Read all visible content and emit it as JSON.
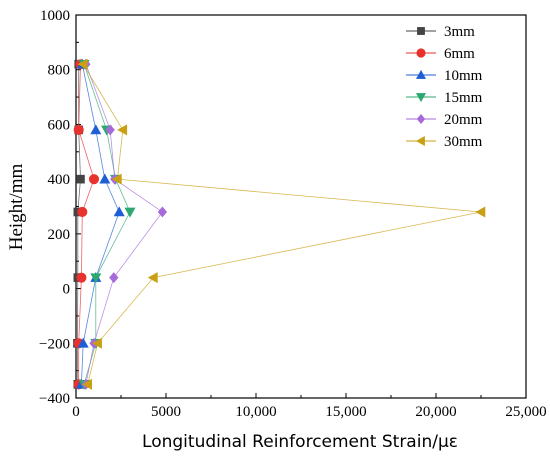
{
  "chart_data": {
    "type": "line",
    "title": "",
    "xlabel": "Longitudinal Reinforcement Strain/με",
    "ylabel": "Height/mm",
    "xlim": [
      0,
      25000
    ],
    "ylim": [
      -400,
      1000
    ],
    "x_ticks": [
      0,
      5000,
      10000,
      15000,
      20000,
      25000
    ],
    "x_tick_labels": [
      "0",
      "5000",
      "10,000",
      "15,000",
      "20,000",
      "25,000"
    ],
    "y_ticks": [
      -400,
      -200,
      0,
      200,
      400,
      600,
      800,
      1000
    ],
    "y_tick_labels": [
      "−400",
      "−200",
      "0",
      "200",
      "400",
      "600",
      "800",
      "1000"
    ],
    "grid": false,
    "legend_position": "top-right",
    "heights": [
      820,
      580,
      400,
      280,
      40,
      -200,
      -350
    ],
    "series": [
      {
        "name": "3mm",
        "marker": "square",
        "color": "#444444",
        "x": [
          150,
          150,
          250,
          100,
          100,
          80,
          100
        ]
      },
      {
        "name": "6mm",
        "marker": "circle",
        "color": "#e8322d",
        "x": [
          250,
          150,
          1000,
          350,
          300,
          150,
          150
        ]
      },
      {
        "name": "10mm",
        "marker": "triangle-up",
        "color": "#1f5fd6",
        "x": [
          350,
          1100,
          1600,
          2400,
          1100,
          400,
          300
        ]
      },
      {
        "name": "15mm",
        "marker": "triangle-down",
        "color": "#2ca870",
        "x": [
          450,
          1700,
          2200,
          3000,
          1100,
          1100,
          450
        ]
      },
      {
        "name": "20mm",
        "marker": "diamond",
        "color": "#a66bd9",
        "x": [
          550,
          1900,
          2150,
          4800,
          2100,
          1000,
          550
        ]
      },
      {
        "name": "30mm",
        "marker": "triangle-left",
        "color": "#c9a013",
        "x": [
          400,
          2600,
          2300,
          22500,
          4300,
          1200,
          650
        ]
      }
    ]
  }
}
